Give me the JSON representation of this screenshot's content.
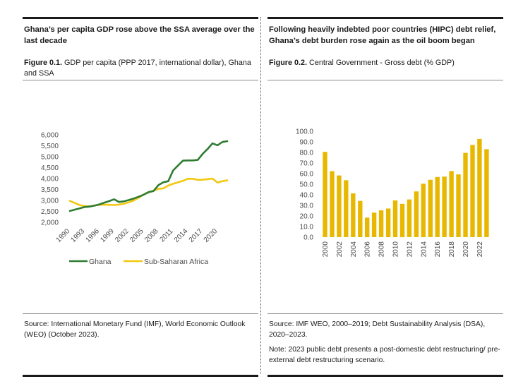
{
  "left": {
    "headline": "Ghana’s per capita GDP rose above the SSA average over the last decade",
    "figure_label": "Figure 0.1.",
    "figure_title": "GDP per capita (PPP 2017, international dollar), Ghana and SSA",
    "source": "Source: International Monetary Fund (IMF), World Economic Outlook (WEO) (October 2023)."
  },
  "right": {
    "headline": "Following heavily indebted poor countries (HIPC) debt relief, Ghana’s debt burden rose again as the oil boom began",
    "figure_label": "Figure 0.2.",
    "figure_title": "Central Government - Gross debt (% GDP)",
    "source": "Source: IMF WEO, 2000–2019; Debt Sustainability Analysis (DSA), 2020–2023.",
    "note": "Note: 2023 public debt presents a post-domestic debt restructuring/ pre-external debt restructuring scenario."
  },
  "colors": {
    "ghana": "#2e7d32",
    "ssa": "#f2c811",
    "bar": "#e8b800"
  },
  "chart_data": [
    {
      "type": "line",
      "title": "",
      "xlabel": "",
      "ylabel": "",
      "x": [
        1990,
        1991,
        1992,
        1993,
        1994,
        1995,
        1996,
        1997,
        1998,
        1999,
        2000,
        2001,
        2002,
        2003,
        2004,
        2005,
        2006,
        2007,
        2008,
        2009,
        2010,
        2011,
        2012,
        2013,
        2014,
        2015,
        2016,
        2017,
        2018,
        2019,
        2020,
        2021,
        2022
      ],
      "x_ticks": [
        "1990",
        "1993",
        "1996",
        "1999",
        "2002",
        "2005",
        "2008",
        "2011",
        "2014",
        "2017",
        "2020"
      ],
      "y_ticks": [
        "6,000",
        "5,500",
        "5,000",
        "4,500",
        "4,000",
        "3,500",
        "3,000",
        "2,500",
        "2,000"
      ],
      "ylim": [
        2000,
        6000
      ],
      "grid": false,
      "legend": "bottom",
      "series": [
        {
          "name": "Ghana",
          "values": [
            2520,
            2580,
            2640,
            2700,
            2720,
            2760,
            2820,
            2900,
            2970,
            3050,
            2930,
            2960,
            3020,
            3090,
            3170,
            3260,
            3380,
            3430,
            3700,
            3830,
            3880,
            4370,
            4600,
            4820,
            4830,
            4830,
            4850,
            5130,
            5350,
            5610,
            5520,
            5670,
            5710
          ]
        },
        {
          "name": "Sub-Saharan Africa",
          "values": [
            2980,
            2880,
            2790,
            2740,
            2730,
            2770,
            2800,
            2810,
            2800,
            2790,
            2810,
            2850,
            2920,
            3000,
            3130,
            3270,
            3370,
            3450,
            3530,
            3550,
            3680,
            3760,
            3830,
            3900,
            3990,
            3990,
            3940,
            3950,
            3970,
            4000,
            3820,
            3880,
            3920
          ]
        }
      ]
    },
    {
      "type": "bar",
      "title": "",
      "xlabel": "",
      "ylabel": "",
      "categories": [
        "2000",
        "2001",
        "2002",
        "2003",
        "2004",
        "2005",
        "2006",
        "2007",
        "2008",
        "2009",
        "2010",
        "2011",
        "2012",
        "2013",
        "2014",
        "2015",
        "2016",
        "2017",
        "2018",
        "2019",
        "2020",
        "2021",
        "2022",
        "2023"
      ],
      "x_tick_labels": [
        "2000",
        "2002",
        "2004",
        "2006",
        "2008",
        "2010",
        "2012",
        "2014",
        "2016",
        "2018",
        "2020",
        "2022"
      ],
      "y_ticks": [
        "100.0",
        "90.0",
        "80.0",
        "70.0",
        "60.0",
        "50.0",
        "40.0",
        "30.0",
        "20.0",
        "10.0",
        "0.0"
      ],
      "values": [
        80.5,
        62.3,
        58.3,
        53.7,
        41.4,
        34.3,
        18.5,
        23.1,
        25.3,
        27.0,
        34.7,
        31.5,
        35.6,
        43.2,
        50.5,
        54.2,
        56.8,
        57.2,
        62.4,
        59.3,
        79.6,
        87.1,
        92.7,
        83.1
      ],
      "ylim": [
        0,
        100
      ],
      "grid": false,
      "legend": "none"
    }
  ]
}
